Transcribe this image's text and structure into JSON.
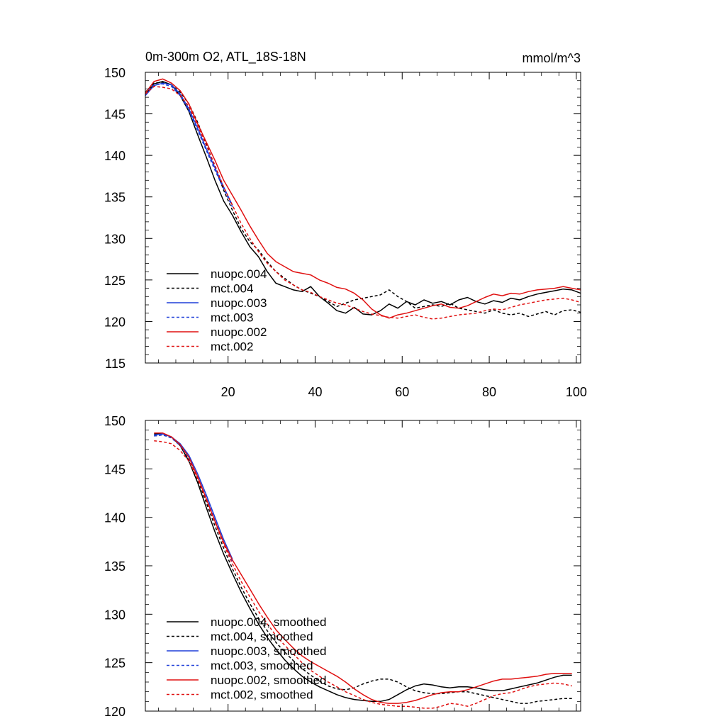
{
  "chart_data": [
    {
      "type": "line",
      "title": "0m-300m O2, ATL_18S-18N",
      "units": "mmol/m^3",
      "xlabel": "",
      "ylabel": "",
      "xlim": [
        1,
        101
      ],
      "ylim": [
        115,
        150
      ],
      "xticks": [
        "20",
        "40",
        "60",
        "80",
        "100"
      ],
      "yticks": [
        "115",
        "120",
        "125",
        "130",
        "135",
        "140",
        "145",
        "150"
      ],
      "legend_position": "lower-left",
      "series": [
        {
          "name": "nuopc.004",
          "color": "#000000",
          "dash": "solid",
          "x": [
            1,
            3,
            5,
            7,
            9,
            11,
            13,
            15,
            17,
            19,
            21,
            23,
            25,
            27,
            29,
            31,
            33,
            35,
            37,
            39,
            41,
            43,
            45,
            47,
            49,
            51,
            53,
            55,
            57,
            59,
            61,
            63,
            65,
            67,
            69,
            71,
            73,
            75,
            77,
            79,
            81,
            83,
            85,
            87,
            89,
            91,
            93,
            95,
            97,
            99,
            101
          ],
          "y": [
            147.3,
            148.6,
            148.9,
            148.5,
            147.2,
            145.3,
            142.5,
            139.8,
            137.0,
            134.5,
            132.8,
            130.8,
            129.0,
            127.8,
            126.0,
            124.6,
            124.2,
            123.8,
            123.6,
            124.2,
            123.0,
            122.2,
            121.3,
            121.0,
            121.7,
            120.9,
            120.8,
            121.3,
            122.1,
            121.6,
            122.4,
            122.0,
            122.6,
            122.2,
            122.4,
            122.0,
            122.6,
            122.9,
            122.4,
            122.1,
            122.5,
            122.3,
            122.8,
            122.6,
            123.0,
            123.3,
            123.5,
            123.7,
            123.9,
            123.8,
            123.4
          ]
        },
        {
          "name": "mct.004",
          "color": "#000000",
          "dash": "dashed",
          "x": [
            1,
            3,
            5,
            7,
            9,
            11,
            13,
            15,
            17,
            19,
            21,
            23,
            25,
            27,
            29,
            31,
            33,
            35,
            37,
            39,
            41,
            43,
            45,
            47,
            49,
            51,
            53,
            55,
            57,
            59,
            61,
            63,
            65,
            67,
            69,
            71,
            73,
            75,
            77,
            79,
            81,
            83,
            85,
            87,
            89,
            91,
            93,
            95,
            97,
            99,
            101
          ],
          "y": [
            147.6,
            148.7,
            148.8,
            148.5,
            147.6,
            146.2,
            144.0,
            141.4,
            138.6,
            135.8,
            133.4,
            131.2,
            129.6,
            128.6,
            127.2,
            126.0,
            125.2,
            124.4,
            123.8,
            123.4,
            123.0,
            122.4,
            121.8,
            122.2,
            122.6,
            122.8,
            123.0,
            123.2,
            123.8,
            123.0,
            122.4,
            121.6,
            121.8,
            122.0,
            121.8,
            122.2,
            121.6,
            121.4,
            121.2,
            121.0,
            121.4,
            121.0,
            120.8,
            121.0,
            120.6,
            120.9,
            121.2,
            120.8,
            121.3,
            121.4,
            121.1
          ]
        },
        {
          "name": "nuopc.003",
          "color": "#1f3fd8",
          "dash": "solid",
          "x": [
            1,
            3,
            5,
            7,
            9,
            11,
            13,
            15,
            17,
            19,
            21
          ],
          "y": [
            147.2,
            148.4,
            148.7,
            148.5,
            147.4,
            145.6,
            143.3,
            140.8,
            138.5,
            136.2,
            134.0
          ]
        },
        {
          "name": "mct.003",
          "color": "#1f3fd8",
          "dash": "dashed",
          "x": [
            1,
            3,
            5,
            7,
            9,
            11,
            13,
            15,
            17,
            19,
            21
          ],
          "y": [
            147.4,
            148.5,
            148.6,
            148.3,
            147.2,
            145.4,
            143.0,
            140.6,
            138.2,
            136.0,
            133.8
          ]
        },
        {
          "name": "nuopc.002",
          "color": "#e01010",
          "dash": "solid",
          "x": [
            1,
            3,
            5,
            7,
            9,
            11,
            13,
            15,
            17,
            19,
            21,
            23,
            25,
            27,
            29,
            31,
            33,
            35,
            37,
            39,
            41,
            43,
            45,
            47,
            49,
            51,
            53,
            55,
            57,
            59,
            61,
            63,
            65,
            67,
            69,
            71,
            73,
            75,
            77,
            79,
            81,
            83,
            85,
            87,
            89,
            91,
            93,
            95,
            97,
            99,
            101
          ],
          "y": [
            147.5,
            148.9,
            149.2,
            148.7,
            147.8,
            146.2,
            143.8,
            141.6,
            139.4,
            137.0,
            135.2,
            133.4,
            131.5,
            129.8,
            128.2,
            127.2,
            126.6,
            126.0,
            125.8,
            125.6,
            125.0,
            124.6,
            124.1,
            123.9,
            123.4,
            122.6,
            121.5,
            120.8,
            120.4,
            120.8,
            121.0,
            121.3,
            121.6,
            121.9,
            122.1,
            121.7,
            121.6,
            121.9,
            122.4,
            122.9,
            123.3,
            123.1,
            123.4,
            123.3,
            123.6,
            123.8,
            123.9,
            124.0,
            124.2,
            124.0,
            123.8
          ]
        },
        {
          "name": "mct.002",
          "color": "#e01010",
          "dash": "dashed",
          "x": [
            1,
            3,
            5,
            7,
            9,
            11,
            13,
            15,
            17,
            19,
            21,
            23,
            25,
            27,
            29,
            31,
            33,
            35,
            37,
            39,
            41,
            43,
            45,
            47,
            49,
            51,
            53,
            55,
            57,
            59,
            61,
            63,
            65,
            67,
            69,
            71,
            73,
            75,
            77,
            79,
            81,
            83,
            85,
            87,
            89,
            91,
            93,
            95,
            97,
            99,
            101
          ],
          "y": [
            147.4,
            148.3,
            148.2,
            148.0,
            147.2,
            145.9,
            143.6,
            141.2,
            138.8,
            136.2,
            134.0,
            131.8,
            130.0,
            128.4,
            127.0,
            126.0,
            125.0,
            124.4,
            123.8,
            123.5,
            123.0,
            122.6,
            122.2,
            122.0,
            121.6,
            121.2,
            120.9,
            120.7,
            120.5,
            120.4,
            120.6,
            120.8,
            120.5,
            120.3,
            120.4,
            120.6,
            120.8,
            120.9,
            121.0,
            121.3,
            121.5,
            121.4,
            121.7,
            122.0,
            122.2,
            122.4,
            122.6,
            122.7,
            122.8,
            122.6,
            122.3
          ]
        }
      ]
    },
    {
      "type": "line",
      "title": "",
      "units": "",
      "xlabel": "",
      "ylabel": "",
      "xlim": [
        1,
        101
      ],
      "ylim": [
        120,
        150
      ],
      "xticks": [],
      "yticks": [
        "120",
        "125",
        "130",
        "135",
        "140",
        "145",
        "150"
      ],
      "legend_position": "lower-left",
      "series": [
        {
          "name": "nuopc.004, smoothed",
          "color": "#000000",
          "dash": "solid",
          "x": [
            3,
            5,
            7,
            9,
            11,
            13,
            15,
            17,
            19,
            21,
            23,
            25,
            27,
            29,
            31,
            33,
            35,
            37,
            39,
            41,
            43,
            45,
            47,
            49,
            51,
            53,
            55,
            57,
            59,
            61,
            63,
            65,
            67,
            69,
            71,
            73,
            75,
            77,
            79,
            81,
            83,
            85,
            87,
            89,
            91,
            93,
            95,
            97,
            99
          ],
          "y": [
            148.6,
            148.6,
            148.3,
            147.4,
            145.8,
            143.6,
            141.0,
            138.5,
            136.2,
            134.2,
            132.3,
            130.6,
            129.0,
            127.6,
            126.4,
            125.3,
            124.4,
            123.6,
            123.0,
            122.5,
            122.1,
            121.7,
            121.4,
            121.2,
            121.1,
            121.0,
            121.0,
            121.2,
            121.7,
            122.2,
            122.6,
            122.8,
            122.7,
            122.5,
            122.4,
            122.5,
            122.5,
            122.4,
            122.2,
            122.1,
            122.1,
            122.3,
            122.5,
            122.7,
            122.9,
            123.2,
            123.5,
            123.7,
            123.7
          ]
        },
        {
          "name": "mct.004, smoothed",
          "color": "#000000",
          "dash": "dashed",
          "x": [
            3,
            5,
            7,
            9,
            11,
            13,
            15,
            17,
            19,
            21,
            23,
            25,
            27,
            29,
            31,
            33,
            35,
            37,
            39,
            41,
            43,
            45,
            47,
            49,
            51,
            53,
            55,
            57,
            59,
            61,
            63,
            65,
            67,
            69,
            71,
            73,
            75,
            77,
            79,
            81,
            83,
            85,
            87,
            89,
            91,
            93,
            95,
            97,
            99
          ],
          "y": [
            148.4,
            148.5,
            148.2,
            147.4,
            146.0,
            143.9,
            141.5,
            139.1,
            136.8,
            134.7,
            132.8,
            131.1,
            129.6,
            128.3,
            127.1,
            126.1,
            125.2,
            124.4,
            123.7,
            123.1,
            122.6,
            122.3,
            122.2,
            122.4,
            122.8,
            123.1,
            123.3,
            123.3,
            123.0,
            122.5,
            122.1,
            121.9,
            121.8,
            121.8,
            121.9,
            122.0,
            122.0,
            121.8,
            121.6,
            121.4,
            121.2,
            121.0,
            120.8,
            120.8,
            121.0,
            121.1,
            121.2,
            121.3,
            121.3
          ]
        },
        {
          "name": "nuopc.003, smoothed",
          "color": "#1f3fd8",
          "dash": "solid",
          "x": [
            3,
            5,
            7,
            9,
            11,
            13,
            15,
            17,
            19,
            21
          ],
          "y": [
            148.5,
            148.6,
            148.3,
            147.6,
            146.4,
            144.5,
            142.3,
            140.0,
            137.7,
            135.7
          ]
        },
        {
          "name": "mct.003, smoothed",
          "color": "#1f3fd8",
          "dash": "dashed",
          "x": [
            3,
            5,
            7,
            9,
            11,
            13,
            15,
            17,
            19,
            21
          ],
          "y": [
            148.4,
            148.5,
            148.2,
            147.4,
            146.1,
            144.2,
            142.0,
            139.7,
            137.4,
            135.4
          ]
        },
        {
          "name": "nuopc.002, smoothed",
          "color": "#e01010",
          "dash": "solid",
          "x": [
            3,
            5,
            7,
            9,
            11,
            13,
            15,
            17,
            19,
            21,
            23,
            25,
            27,
            29,
            31,
            33,
            35,
            37,
            39,
            41,
            43,
            45,
            47,
            49,
            51,
            53,
            55,
            57,
            59,
            61,
            63,
            65,
            67,
            69,
            71,
            73,
            75,
            77,
            79,
            81,
            83,
            85,
            87,
            89,
            91,
            93,
            95,
            97,
            99
          ],
          "y": [
            148.7,
            148.7,
            148.3,
            147.5,
            146.2,
            144.2,
            141.9,
            139.6,
            137.4,
            135.6,
            134.1,
            132.6,
            131.1,
            129.7,
            128.4,
            127.4,
            126.5,
            125.7,
            125.1,
            124.6,
            124.1,
            123.6,
            123.0,
            122.3,
            121.7,
            121.2,
            120.9,
            120.8,
            120.8,
            120.9,
            121.1,
            121.4,
            121.7,
            121.9,
            122.0,
            122.0,
            122.2,
            122.5,
            122.8,
            123.1,
            123.3,
            123.3,
            123.4,
            123.5,
            123.6,
            123.8,
            123.9,
            123.9,
            123.9
          ]
        },
        {
          "name": "mct.002, smoothed",
          "color": "#e01010",
          "dash": "dashed",
          "x": [
            3,
            5,
            7,
            9,
            11,
            13,
            15,
            17,
            19,
            21,
            23,
            25,
            27,
            29,
            31,
            33,
            35,
            37,
            39,
            41,
            43,
            45,
            47,
            49,
            51,
            53,
            55,
            57,
            59,
            61,
            63,
            65,
            67,
            69,
            71,
            73,
            75,
            77,
            79,
            81,
            83,
            85,
            87,
            89,
            91,
            93,
            95,
            97,
            99
          ],
          "y": [
            147.9,
            147.8,
            147.6,
            146.9,
            145.8,
            144.0,
            141.8,
            139.5,
            137.2,
            135.2,
            133.4,
            131.8,
            130.3,
            129.0,
            127.8,
            126.8,
            125.9,
            125.0,
            124.2,
            123.6,
            123.0,
            122.5,
            122.0,
            121.6,
            121.2,
            120.9,
            120.7,
            120.6,
            120.5,
            120.5,
            120.4,
            120.3,
            120.3,
            120.5,
            120.8,
            120.7,
            120.5,
            120.8,
            121.2,
            121.6,
            121.8,
            121.9,
            122.2,
            122.5,
            122.7,
            122.8,
            122.9,
            122.8,
            122.6
          ]
        }
      ]
    }
  ]
}
